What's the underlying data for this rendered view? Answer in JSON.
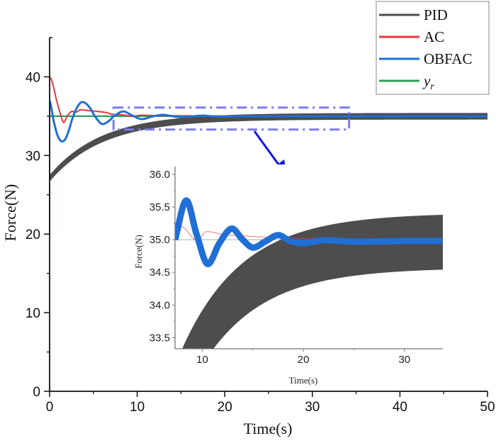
{
  "chart_data": [
    {
      "id": "main",
      "type": "line",
      "title": "",
      "xlabel": "Time(s)",
      "ylabel": "Force(N)",
      "xlim": [
        0,
        50
      ],
      "ylim": [
        0,
        45
      ],
      "xticks": [
        0,
        10,
        20,
        30,
        40,
        50
      ],
      "yticks": [
        0,
        10,
        20,
        30,
        40
      ],
      "grid": false,
      "legend": {
        "placement": "top-right",
        "entries": [
          {
            "label": "PID",
            "color": "#4d4d4d"
          },
          {
            "label": "AC",
            "color": "#e8383d"
          },
          {
            "label": "OBFAC",
            "color": "#1f6fd6"
          },
          {
            "label": "y",
            "subscript": "r",
            "color": "#2e9e5b"
          }
        ]
      },
      "series": [
        {
          "name": "PID",
          "color": "#4d4d4d",
          "style": "band",
          "model": {
            "final": 34.99,
            "amplitude": 7.9,
            "time_constant": 6,
            "band_halfwidth": 0.42
          }
        },
        {
          "name": "AC",
          "color": "#e8383d",
          "x": [
            0,
            0,
            0.3,
            0.8,
            1.3,
            1.6,
            2.0,
            2.5,
            3.0,
            3.5,
            4.5,
            5.5,
            6.5,
            7.5,
            8.0,
            9.5,
            10.3,
            12,
            15,
            18,
            25,
            50
          ],
          "y": [
            20,
            40,
            39.3,
            37,
            35.1,
            34.2,
            35.0,
            35.6,
            35.5,
            35.8,
            35.7,
            35.6,
            35.45,
            35.15,
            35.2,
            34.98,
            35.12,
            35.08,
            35.05,
            35.03,
            35.01,
            35.0
          ]
        },
        {
          "name": "OBFAC",
          "color": "#1f6fd6",
          "x": [
            0,
            0.5,
            1.0,
            1.5,
            2.0,
            2.7,
            3.3,
            3.8,
            4.5,
            5.3,
            6.0,
            6.8,
            7.3,
            8.4,
            9.4,
            10.5,
            11.7,
            12.9,
            14.0,
            15.0,
            16.2,
            17.5,
            18.7,
            20,
            22,
            25,
            30,
            50
          ],
          "y": [
            37.0,
            34.2,
            32.3,
            31.8,
            32.6,
            35.0,
            36.4,
            36.8,
            36.2,
            34.8,
            34.0,
            34.4,
            35.0,
            35.6,
            35.1,
            34.63,
            34.95,
            35.17,
            35.0,
            34.88,
            34.97,
            35.07,
            34.98,
            34.95,
            34.99,
            34.97,
            34.98,
            34.98
          ],
          "band_halfwidth_inset": 0.05
        },
        {
          "name": "y_r",
          "color": "#2e9e5b",
          "x": [
            0,
            50
          ],
          "y": [
            35,
            35
          ]
        }
      ],
      "annotations": [
        {
          "type": "zoom-region",
          "x_range": [
            7.3,
            34.2
          ],
          "y_range": [
            33.3,
            36.1
          ],
          "style": "dash-dot",
          "color": "#7b7bf5"
        },
        {
          "type": "arrow",
          "from": "zoom-region",
          "to": "inset",
          "color": "#1414e6"
        }
      ]
    },
    {
      "id": "inset",
      "type": "line",
      "xlabel": "Time(s)",
      "ylabel": "Force(N)",
      "xlim": [
        7.3,
        33.8
      ],
      "ylim": [
        33.33,
        36.12
      ],
      "xticks": [
        10,
        20,
        30
      ],
      "yticks": [
        33.5,
        34.0,
        34.5,
        35.0,
        35.5,
        36.0
      ],
      "ytick_labels": [
        "33.5",
        "34.0",
        "34.5",
        "35.0",
        "35.5",
        "36.0"
      ],
      "grid": false,
      "series_ref": [
        "PID",
        "AC",
        "OBFAC",
        "y_r"
      ]
    }
  ]
}
